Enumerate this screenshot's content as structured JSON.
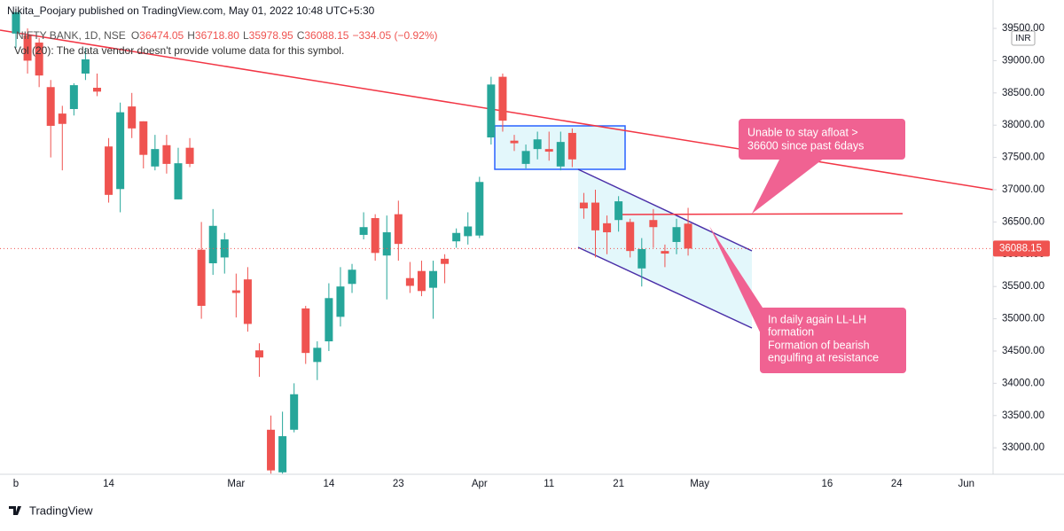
{
  "publisher": "Nikita_Poojary published on TradingView.com, May 01, 2022 10:48 UTC+5:30",
  "footer": "TradingView",
  "chart_data": {
    "type": "candlestick",
    "symbol": "NIFTY BANK, 1D, NSE",
    "ohlc_header": [
      {
        "key": "O",
        "value": "36474.05"
      },
      {
        "key": "H",
        "value": "36718.80"
      },
      {
        "key": "L",
        "value": "35978.95"
      },
      {
        "key": "C",
        "value": "36088.15"
      }
    ],
    "change": "−334.05 (−0.92%)",
    "volume_note": "Vol (20): The data vendor doesn't provide volume data for this symbol.",
    "currency": "INR",
    "up_color": "#26a69a",
    "down_color": "#ef5350",
    "grid": false,
    "categories": [
      "b",
      null,
      null,
      null,
      null,
      null,
      null,
      null,
      "14",
      null,
      null,
      null,
      null,
      null,
      null,
      null,
      null,
      null,
      null,
      "Mar",
      null,
      null,
      null,
      null,
      null,
      null,
      null,
      "14",
      null,
      null,
      null,
      null,
      null,
      "23",
      null,
      null,
      null,
      null,
      null,
      null,
      "Apr",
      null,
      null,
      null,
      null,
      null,
      "11",
      null,
      null,
      null,
      null,
      null,
      "21",
      null,
      null,
      null,
      null,
      null,
      null,
      "May",
      null,
      null,
      null,
      null,
      null,
      null,
      null,
      null,
      null,
      null,
      "16",
      null,
      null,
      null,
      null,
      null,
      "24",
      null,
      null,
      null,
      null,
      null,
      "Jun"
    ],
    "open": [
      39420,
      39390,
      39280,
      38590,
      38180,
      38250,
      38800,
      38580,
      37670,
      37010,
      38290,
      38060,
      37360,
      37690,
      36850,
      37650,
      36070,
      35860,
      35950,
      35440,
      35610,
      34510,
      33280,
      32620,
      33280,
      35160,
      34330,
      34650,
      35030,
      35540,
      36300,
      36560,
      35980,
      36620,
      35630,
      35740,
      35480,
      35930,
      36200,
      36280,
      36290,
      37810,
      38750,
      37760,
      37400,
      37630,
      37630,
      37360,
      37880,
      36800,
      36800,
      36480,
      36530,
      36500,
      35780,
      36530,
      36050,
      36190,
      36474.05,
      null,
      null,
      null,
      null,
      null,
      null,
      null,
      null,
      null,
      null,
      null,
      null,
      null,
      null,
      null,
      null,
      null,
      null,
      null,
      null,
      null,
      null,
      null,
      null
    ],
    "high": [
      39800,
      39500,
      39350,
      38700,
      38300,
      38650,
      39200,
      38800,
      37800,
      38350,
      38500,
      38060,
      37850,
      37850,
      37650,
      37800,
      36500,
      36700,
      36330,
      35700,
      35800,
      34620,
      33500,
      33560,
      34000,
      35200,
      34650,
      35550,
      35800,
      35850,
      36650,
      36620,
      36600,
      36830,
      35880,
      35900,
      35900,
      36000,
      36400,
      36650,
      37200,
      38750,
      38800,
      37850,
      37700,
      37900,
      37900,
      37900,
      37950,
      36950,
      37000,
      36600,
      36900,
      36550,
      36250,
      36700,
      36150,
      36550,
      36718.8,
      null,
      null,
      null,
      null,
      null,
      null,
      null,
      null,
      null,
      null,
      null,
      null,
      null,
      null,
      null,
      null,
      null,
      null,
      null,
      null,
      null,
      null,
      null,
      null
    ],
    "low": [
      39200,
      38800,
      38590,
      37500,
      37300,
      38150,
      38700,
      38450,
      36800,
      36650,
      37800,
      37330,
      37300,
      37250,
      36850,
      37350,
      35000,
      35680,
      35700,
      35020,
      34800,
      34100,
      32600,
      32600,
      33240,
      34300,
      34050,
      34500,
      34880,
      35400,
      36230,
      35900,
      35300,
      35900,
      35400,
      35350,
      35000,
      35550,
      36100,
      36150,
      36250,
      37700,
      37900,
      37600,
      37330,
      37470,
      37450,
      37300,
      37350,
      36550,
      35950,
      36000,
      36350,
      35950,
      35500,
      36100,
      35800,
      36000,
      35978.95,
      null,
      null,
      null,
      null,
      null,
      null,
      null,
      null,
      null,
      null,
      null,
      null,
      null,
      null,
      null,
      null,
      null,
      null,
      null,
      null,
      null,
      null,
      null,
      null
    ],
    "close": [
      39750,
      39000,
      38770,
      37990,
      38020,
      38620,
      39020,
      38520,
      36920,
      38200,
      37950,
      37540,
      37630,
      37400,
      37410,
      37400,
      35200,
      36440,
      36230,
      35400,
      34920,
      34400,
      32650,
      33180,
      33830,
      34470,
      34550,
      35320,
      35500,
      35760,
      36420,
      36020,
      36340,
      36160,
      35510,
      35430,
      35740,
      35850,
      36330,
      36430,
      37120,
      38630,
      38070,
      37720,
      37600,
      37780,
      37590,
      37740,
      37470,
      36710,
      36370,
      36340,
      36820,
      36050,
      36080,
      36420,
      36010,
      36420,
      36088.15,
      null,
      null,
      null,
      null,
      null,
      null,
      null,
      null,
      null,
      null,
      null,
      null,
      null,
      null,
      null,
      null,
      null,
      null,
      null,
      null,
      null,
      null,
      null,
      null
    ],
    "last_price": 36088.15,
    "ylim": [
      32590,
      39940
    ],
    "yticks": [
      {
        "value": 33000,
        "label": "33000.00"
      },
      {
        "value": 33500,
        "label": "33500.00"
      },
      {
        "value": 34000,
        "label": "34000.00"
      },
      {
        "value": 34500,
        "label": "34500.00"
      },
      {
        "value": 35000,
        "label": "35000.00"
      },
      {
        "value": 35500,
        "label": "35500.00"
      },
      {
        "value": 36000,
        "label": "36000.00"
      },
      {
        "value": 36500,
        "label": "36500.00"
      },
      {
        "value": 37000,
        "label": "37000.00"
      },
      {
        "value": 37500,
        "label": "37500.00"
      },
      {
        "value": 38000,
        "label": "38000.00"
      },
      {
        "value": 38500,
        "label": "38500.00"
      },
      {
        "value": 39000,
        "label": "39000.00"
      },
      {
        "value": 39500,
        "label": "39500.00"
      }
    ],
    "annotations": [
      {
        "lines": [
          "Unable to stay afloat >",
          "36600 since past 6days"
        ]
      },
      {
        "lines": [
          "In daily again LL-LH",
          "formation",
          "Formation of bearish",
          "engulfing at resistance"
        ]
      }
    ]
  }
}
